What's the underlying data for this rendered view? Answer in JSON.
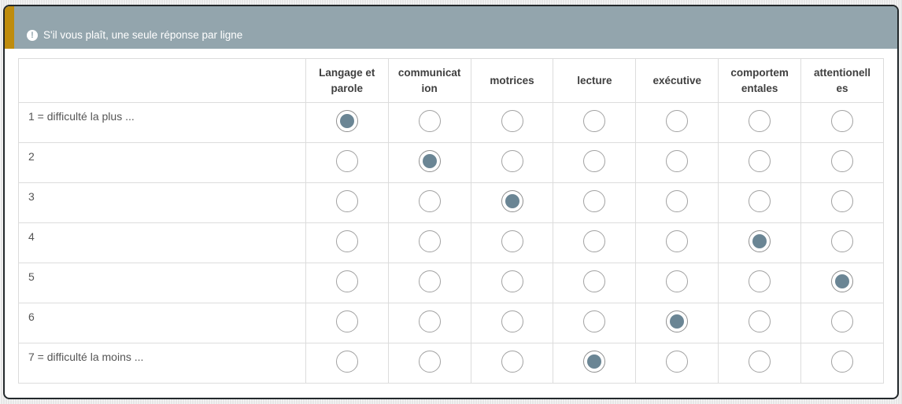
{
  "tip": {
    "icon": "exclamation-circle-icon",
    "icon_glyph": "!",
    "text": "S'il vous plaît, une seule réponse par ligne"
  },
  "matrix": {
    "columns": [
      "Langage et\nparole",
      "communicat\nion",
      "motrices",
      "lecture",
      "exécutive",
      "comportem\nentales",
      "attentionell\nes"
    ],
    "rows": [
      {
        "label": "1 = difficulté la plus ...",
        "selected": 0
      },
      {
        "label": "2",
        "selected": 1
      },
      {
        "label": "3",
        "selected": 2
      },
      {
        "label": "4",
        "selected": 5
      },
      {
        "label": "5",
        "selected": 6
      },
      {
        "label": "6",
        "selected": 4
      },
      {
        "label": "7 = difficulté la moins ...",
        "selected": 3
      }
    ]
  },
  "colors": {
    "tip_bar": "#93a5ad",
    "accent": "#bf8c0d",
    "radio_fill": "#6a8594",
    "panel_border": "#23292c"
  }
}
